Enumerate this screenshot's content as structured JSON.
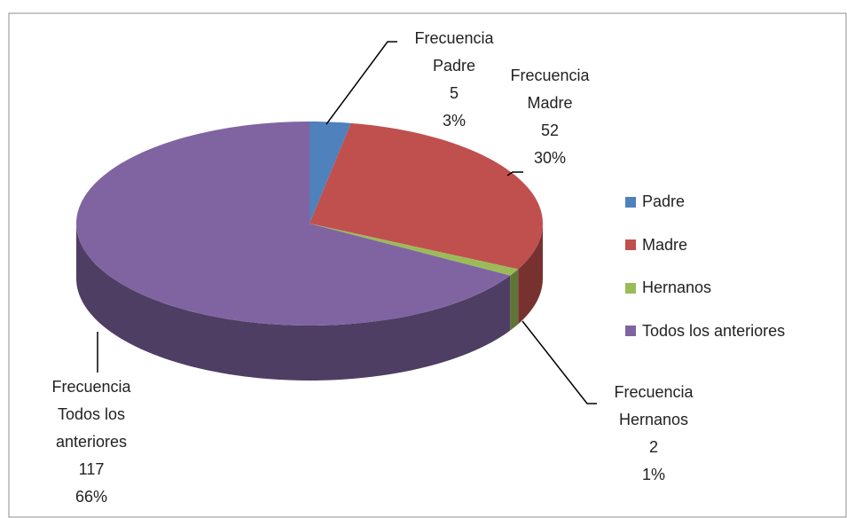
{
  "chart_data": {
    "type": "pie3d",
    "categories": [
      "Padre",
      "Madre",
      "Hernanos",
      "Todos los anteriores"
    ],
    "series": [
      {
        "name": "Frecuencia",
        "values": [
          5,
          52,
          2,
          117
        ],
        "percent_labels": [
          "3%",
          "30%",
          "1%",
          "66%"
        ]
      }
    ],
    "colors": [
      "#4f81bd",
      "#c0504d",
      "#9bbb59",
      "#8064a2"
    ],
    "legend": "right"
  }
}
